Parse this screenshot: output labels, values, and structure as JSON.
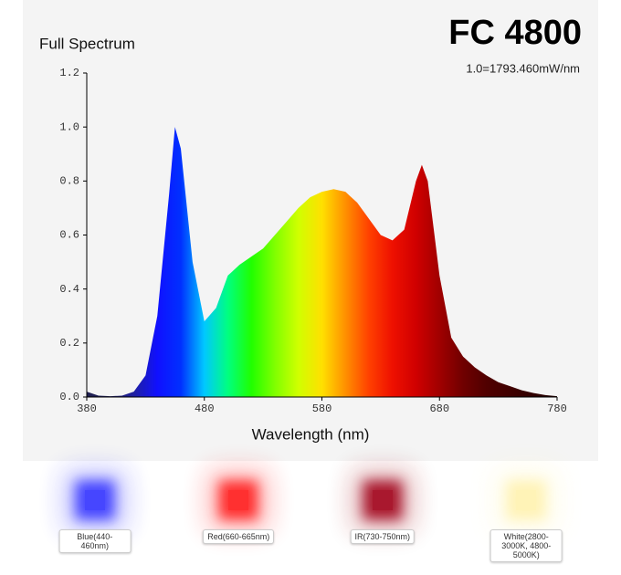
{
  "chart_data": {
    "type": "area",
    "title": "FC 4800",
    "subtitle": "Full Spectrum",
    "annotation": "1.0=1793.460mW/nm",
    "x_label": "Wavelength (nm)",
    "x": [
      380,
      390,
      400,
      410,
      420,
      430,
      440,
      450,
      455,
      460,
      470,
      480,
      490,
      500,
      510,
      520,
      530,
      540,
      550,
      560,
      570,
      580,
      590,
      600,
      610,
      620,
      630,
      640,
      650,
      660,
      665,
      670,
      680,
      690,
      700,
      710,
      720,
      730,
      740,
      750,
      760,
      770,
      780
    ],
    "values": [
      0.02,
      0.005,
      0.003,
      0.005,
      0.02,
      0.08,
      0.3,
      0.75,
      1.0,
      0.92,
      0.5,
      0.28,
      0.33,
      0.45,
      0.49,
      0.52,
      0.55,
      0.6,
      0.65,
      0.7,
      0.74,
      0.76,
      0.77,
      0.76,
      0.72,
      0.66,
      0.6,
      0.58,
      0.62,
      0.8,
      0.86,
      0.8,
      0.45,
      0.22,
      0.15,
      0.11,
      0.08,
      0.055,
      0.04,
      0.025,
      0.015,
      0.007,
      0.003
    ],
    "gradient": [
      "#202050",
      "#202060",
      "#2020a0",
      "#1010ff",
      "#0030ff",
      "#00c8ff",
      "#00ff80",
      "#20ff00",
      "#80ff00",
      "#d0ff00",
      "#ffe000",
      "#ff9000",
      "#ff4000",
      "#ee1000",
      "#d00000",
      "#a00000",
      "#700000",
      "#500000",
      "#400000",
      "#300000",
      "#200000"
    ],
    "xlim": [
      380,
      780
    ],
    "xticks": [
      380,
      480,
      580,
      680,
      780
    ],
    "ylim": [
      0,
      1.2
    ],
    "yticks": [
      {
        "value": 0,
        "label": "0.0"
      },
      0.2,
      0.4,
      0.6,
      0.8,
      {
        "value": 1,
        "label": "1.0"
      },
      1.2
    ],
    "light_sources": [
      {
        "label": "Blue(440-460nm)",
        "color": "#3333ff"
      },
      {
        "label": "Red(660-665nm)",
        "color": "#ff1a1a"
      },
      {
        "label": "IR(730-750nm)",
        "color": "#a00018"
      },
      {
        "label": "White(2800-3000K, 4800-5000K)",
        "color": "#fff2b0"
      }
    ]
  }
}
